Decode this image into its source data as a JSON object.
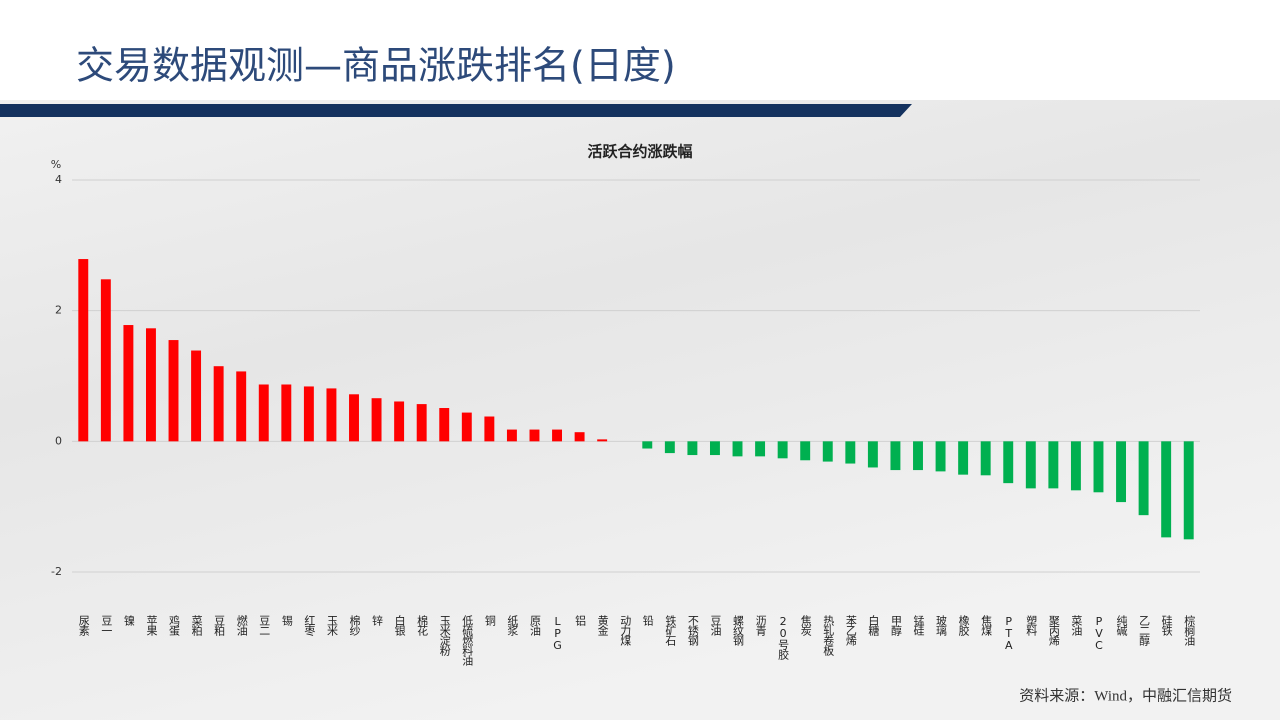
{
  "page_title": "交易数据观测—商品涨跌排名(日度)",
  "source": "资料来源：Wind，中融汇信期货",
  "chart_data": {
    "type": "bar",
    "title": "活跃合约涨跌幅",
    "y_label": "%",
    "categories": [
      "尿素",
      "豆一",
      "镍",
      "苹果",
      "鸡蛋",
      "菜粕",
      "豆粕",
      "燃油",
      "豆二",
      "锡",
      "红枣",
      "玉米",
      "棉纱",
      "锌",
      "白银",
      "棉花",
      "玉米淀粉",
      "低硫燃料油",
      "铜",
      "纸浆",
      "原油",
      "LPG",
      "铝",
      "黄金",
      "动力煤",
      "铅",
      "铁矿石",
      "不锈钢",
      "豆油",
      "螺纹钢",
      "沥青",
      "20号胶",
      "焦炭",
      "热轧卷板",
      "苯乙烯",
      "白糖",
      "甲醇",
      "锰硅",
      "玻璃",
      "橡胶",
      "焦煤",
      "PTA",
      "塑料",
      "聚丙烯",
      "菜油",
      "PVC",
      "纯碱",
      "乙二醇",
      "硅铁",
      "棕榈油"
    ],
    "values": [
      2.79,
      2.48,
      1.78,
      1.73,
      1.55,
      1.39,
      1.15,
      1.07,
      0.87,
      0.87,
      0.84,
      0.81,
      0.72,
      0.66,
      0.61,
      0.57,
      0.51,
      0.44,
      0.38,
      0.18,
      0.18,
      0.18,
      0.14,
      0.03,
      0,
      -0.11,
      -0.18,
      -0.21,
      -0.21,
      -0.23,
      -0.23,
      -0.26,
      -0.29,
      -0.31,
      -0.34,
      -0.4,
      -0.44,
      -0.44,
      -0.46,
      -0.51,
      -0.52,
      -0.64,
      -0.72,
      -0.72,
      -0.75,
      -0.78,
      -0.93,
      -1.13,
      -1.47,
      -1.5
    ],
    "positive_color": "#ff0000",
    "negative_color": "#00b050",
    "ylim": [
      -2,
      4
    ],
    "yticks": [
      -2,
      0,
      2,
      4
    ],
    "grid": true
  }
}
